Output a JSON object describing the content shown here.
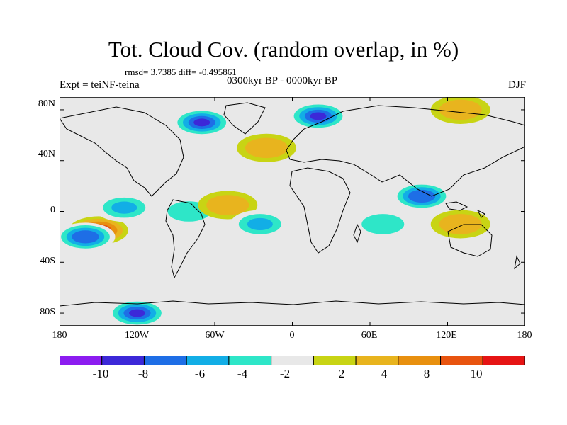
{
  "map": {
    "title": "Tot. Cloud Cov. (random overlap, in %)",
    "stats": "rmsd= 3.7385 diff= -0.495861",
    "experiment": "Expt = teiNF-teina",
    "period": "0300kyr BP - 0000kyr BP",
    "season": "DJF",
    "lat_ticks": [
      "80N",
      "40N",
      "0",
      "40S",
      "80S"
    ],
    "lon_ticks": [
      "180",
      "120W",
      "60W",
      "0",
      "60E",
      "120E",
      "180"
    ]
  },
  "colorbar": {
    "labels": [
      "-10",
      "-8",
      "-6",
      "-4",
      "-2",
      "2",
      "4",
      "8",
      "10"
    ],
    "colors": [
      "#8c1cf0",
      "#3c28d8",
      "#1e6ee6",
      "#12aee6",
      "#2ee6c8",
      "#e8e8e8",
      "#c8d414",
      "#e8b41e",
      "#e8900f",
      "#e8540f",
      "#e61414"
    ]
  },
  "chart_data": {
    "type": "heatmap",
    "title": "Tot. Cloud Cov. (random overlap, in %)",
    "projection": "cylindrical-equidistant",
    "xlim": [
      -180,
      180
    ],
    "ylim": [
      -90,
      90
    ],
    "levels": [
      -10,
      -8,
      -6,
      -4,
      -2,
      2,
      4,
      8,
      10
    ],
    "anomaly_regions": [
      {
        "lon": -150,
        "lat": -15,
        "value": 11
      },
      {
        "lon": -160,
        "lat": -20,
        "value": -8
      },
      {
        "lon": -130,
        "lat": 3,
        "value": -5
      },
      {
        "lon": -80,
        "lat": 0,
        "value": -4
      },
      {
        "lon": -50,
        "lat": 5,
        "value": 4
      },
      {
        "lon": -25,
        "lat": -10,
        "value": -5
      },
      {
        "lon": 100,
        "lat": 12,
        "value": -8
      },
      {
        "lon": 130,
        "lat": -10,
        "value": 5
      },
      {
        "lon": 70,
        "lat": -10,
        "value": -4
      },
      {
        "lon": -20,
        "lat": 50,
        "value": 5
      },
      {
        "lon": -70,
        "lat": 70,
        "value": -9
      },
      {
        "lon": 20,
        "lat": 75,
        "value": -9
      },
      {
        "lon": 130,
        "lat": 80,
        "value": 4
      },
      {
        "lon": -120,
        "lat": -80,
        "value": -9
      }
    ]
  }
}
